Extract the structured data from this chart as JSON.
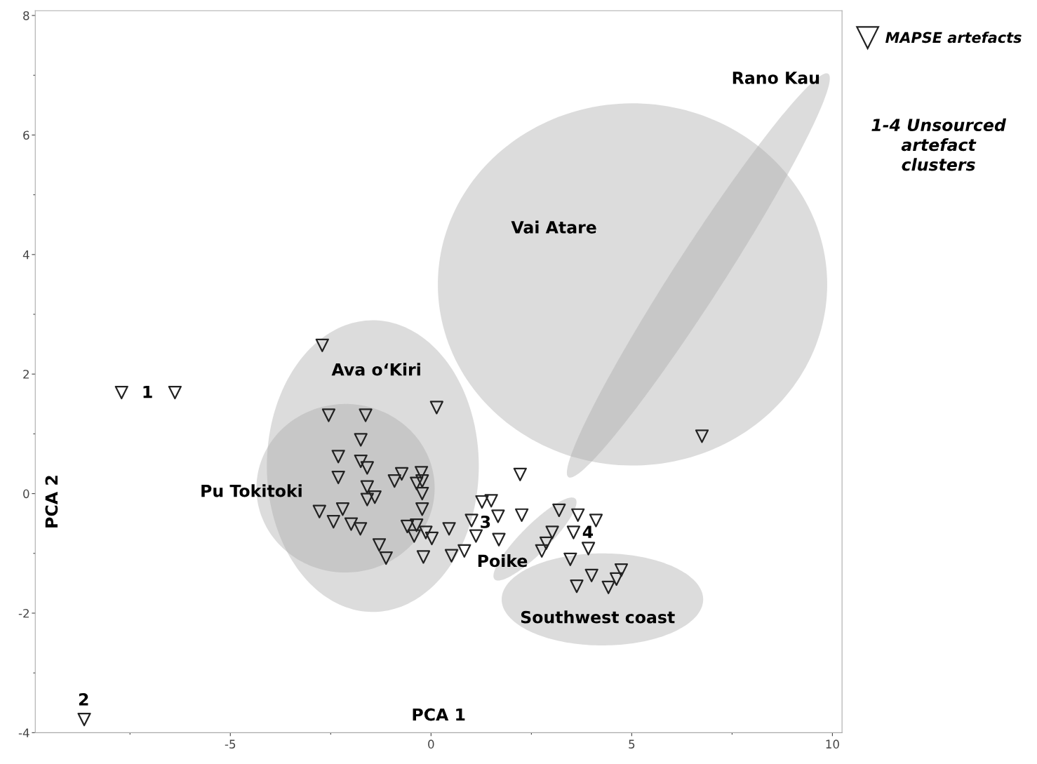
{
  "chart_data": {
    "type": "scatter",
    "xlabel": "PCA 1",
    "ylabel": "PCA 2",
    "xlim": [
      -9.86,
      10.24
    ],
    "ylim": [
      -4,
      8.08
    ],
    "xticks": [
      -5,
      0,
      5,
      10
    ],
    "yticks": [
      -4,
      -2,
      0,
      2,
      4,
      6,
      8
    ],
    "marker": "triangle",
    "grid": false,
    "legend": "right",
    "series": [
      {
        "name": "MAPSE artefacts",
        "color": "#222222",
        "x": [
          -2.71,
          -7.71,
          -6.38,
          -8.64,
          0.14,
          6.75,
          2.22,
          -2.55,
          -1.63,
          -1.75,
          -2.31,
          -1.75,
          -1.59,
          -2.31,
          -1.59,
          -1.59,
          -1.4,
          -0.91,
          -0.73,
          -0.24,
          -0.36,
          -0.22,
          -0.22,
          -0.22,
          -2.78,
          -2.2,
          -2.43,
          -1.99,
          -1.76,
          -1.29,
          -1.12,
          -0.59,
          -0.36,
          -0.42,
          -0.13,
          0.02,
          -0.19,
          0.45,
          0.51,
          0.83,
          1.27,
          1.5,
          1.01,
          1.67,
          2.26,
          1.12,
          1.69,
          3.19,
          3.66,
          4.11,
          3.02,
          2.87,
          2.76,
          3.55,
          3.92,
          3.47,
          4.0,
          3.63,
          4.42,
          4.62,
          4.74
        ],
        "values": [
          2.48,
          1.69,
          1.69,
          -3.78,
          1.44,
          0.96,
          0.32,
          1.31,
          1.31,
          0.9,
          0.62,
          0.54,
          0.43,
          0.27,
          0.11,
          -0.1,
          -0.06,
          0.21,
          0.33,
          0.35,
          0.17,
          0.21,
          0.0,
          -0.26,
          -0.3,
          -0.26,
          -0.47,
          -0.51,
          -0.59,
          -0.86,
          -1.08,
          -0.55,
          -0.53,
          -0.71,
          -0.65,
          -0.75,
          -1.06,
          -0.59,
          -1.04,
          -0.96,
          -0.14,
          -0.12,
          -0.45,
          -0.38,
          -0.36,
          -0.71,
          -0.77,
          -0.28,
          -0.36,
          -0.45,
          -0.65,
          -0.83,
          -0.96,
          -0.65,
          -0.92,
          -1.1,
          -1.37,
          -1.55,
          -1.57,
          -1.43,
          -1.28
        ]
      }
    ],
    "annotations": [
      "Rano Kau",
      "Vai Atare",
      "Ava o‘Kiri",
      "Pu Tokitoki",
      "Poike",
      "Southwest coast",
      "1",
      "2",
      "3",
      "4",
      "1-4 Unsourced\nartefact\nclusters"
    ]
  }
}
